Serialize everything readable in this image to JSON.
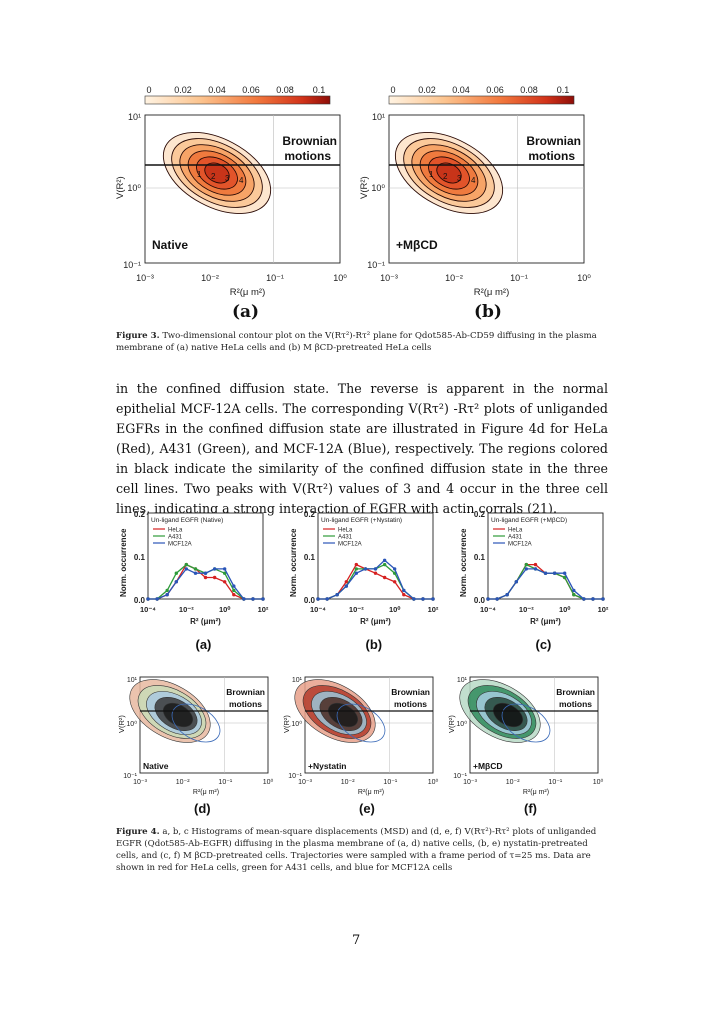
{
  "figure3": {
    "colorbar_ticks": [
      "0",
      "0.02",
      "0.04",
      "0.06",
      "0.08",
      "0.1"
    ],
    "y_ticks": [
      "10¹",
      "10⁰",
      "10⁻¹"
    ],
    "x_ticks": [
      "10⁻³",
      "10⁻²",
      "10⁻¹",
      "10⁰"
    ],
    "ylabel": "V(R²)",
    "xlabel": "R²(μ m²)",
    "brownian_line1": "Brownian",
    "brownian_line2": "motions",
    "panel_a_condition": "Native",
    "panel_b_condition": "+MβCD",
    "panel_a_label": "(a)",
    "panel_b_label": "(b)",
    "contour_labels": [
      "1",
      "2",
      "3",
      "4"
    ],
    "caption_head": "Figure 3.",
    "caption_text": "Two-dimensional contour plot on the V(Rτ²)-Rτ² plane for Qdot585-Ab-CD59 diffusing in the plasma membrane of (a) native HeLa cells and (b) M βCD-pretreated HeLa cells"
  },
  "paragraph": "in the confined diffusion state. The reverse is apparent in the normal epithelial MCF-12A cells. The corresponding V(Rτ²) -Rτ² plots of unliganded EGFRs in the confined diffusion state are illustrated in Figure 4d for HeLa (Red), A431 (Green), and MCF-12A (Blue), respectively. The regions colored in black indicate the similarity of the confined diffusion state in the three cell lines. Two peaks with V(Rτ²) values of 3 and 4 occur in the three cell lines, indicating a strong interaction of EGFR with actin corrals (21).",
  "figure4": {
    "hist_ylabel": "Norm. occurrence",
    "hist_xlabel": "R² (μm²)",
    "hist_y_ticks": [
      "0.2",
      "0.1",
      "0.0"
    ],
    "hist_x_ticks": [
      "10⁻⁴",
      "10⁻²",
      "10⁰",
      "10²"
    ],
    "hist_titles": [
      "Un-ligand EGFR (Native)",
      "Un-ligand EGFR (+Nystatin)",
      "Un-ligand EGFR (+MβCD)"
    ],
    "legend": [
      "HeLa",
      "A431",
      "MCF12A"
    ],
    "series_colors": {
      "HeLa": "#d62020",
      "A431": "#2e9b3a",
      "MCF12A": "#2a55b8"
    },
    "hist_labels": [
      "(a)",
      "(b)",
      "(c)"
    ],
    "contour_labels": [
      "(d)",
      "(e)",
      "(f)"
    ],
    "contour_conditions": [
      "Native",
      "+Nystatin",
      "+MβCD"
    ],
    "contour_ylabel": "V(R²)",
    "contour_xlabel": "R²(μ m²)",
    "contour_x_ticks": [
      "10⁻³",
      "10⁻²",
      "10⁻¹",
      "10⁰"
    ],
    "contour_y_ticks": [
      "10¹",
      "10⁰",
      "10⁻¹"
    ],
    "brownian_line1": "Brownian",
    "brownian_line2": "motions",
    "caption_head": "Figure 4.",
    "caption_text": "a, b, c Histograms of mean-square displacements (MSD) and (d, e, f) V(Rτ²)-Rτ² plots of unliganded EGFR (Qdot585-Ab-EGFR) diffusing in the plasma membrane of (a, d) native cells, (b, e) nystatin-pretreated cells, and (c, f) M βCD-pretreated cells. Trajectories were sampled with a frame period of τ=25 ms. Data are shown in red for HeLa cells, green for A431 cells, and blue for MCF12A cells"
  },
  "chart_data": [
    {
      "type": "line",
      "title": "Un-ligand EGFR (Native)",
      "xlabel": "R² (μm²)",
      "ylabel": "Norm. occurrence",
      "xscale": "log",
      "xlim": [
        0.0001,
        100
      ],
      "ylim": [
        0,
        0.2
      ],
      "x": [
        0.0001,
        0.0003,
        0.001,
        0.003,
        0.01,
        0.03,
        0.1,
        0.3,
        1,
        3,
        10,
        30,
        100
      ],
      "series": [
        {
          "name": "HeLa",
          "values": [
            0.0,
            0.0,
            0.01,
            0.04,
            0.08,
            0.07,
            0.05,
            0.05,
            0.04,
            0.01,
            0.0,
            0.0,
            0.0
          ]
        },
        {
          "name": "A431",
          "values": [
            0.0,
            0.0,
            0.02,
            0.06,
            0.08,
            0.07,
            0.06,
            0.07,
            0.06,
            0.02,
            0.0,
            0.0,
            0.0
          ]
        },
        {
          "name": "MCF12A",
          "values": [
            0.0,
            0.0,
            0.01,
            0.04,
            0.07,
            0.06,
            0.06,
            0.07,
            0.07,
            0.03,
            0.0,
            0.0,
            0.0
          ]
        }
      ]
    },
    {
      "type": "line",
      "title": "Un-ligand EGFR (+Nystatin)",
      "xlabel": "R² (μm²)",
      "ylabel": "Norm. occurrence",
      "xscale": "log",
      "xlim": [
        0.0001,
        100
      ],
      "ylim": [
        0,
        0.2
      ],
      "x": [
        0.0001,
        0.0003,
        0.001,
        0.003,
        0.01,
        0.03,
        0.1,
        0.3,
        1,
        3,
        10,
        30,
        100
      ],
      "series": [
        {
          "name": "HeLa",
          "values": [
            0.0,
            0.0,
            0.01,
            0.04,
            0.08,
            0.07,
            0.06,
            0.05,
            0.04,
            0.01,
            0.0,
            0.0,
            0.0
          ]
        },
        {
          "name": "A431",
          "values": [
            0.0,
            0.0,
            0.01,
            0.03,
            0.07,
            0.07,
            0.07,
            0.08,
            0.06,
            0.02,
            0.0,
            0.0,
            0.0
          ]
        },
        {
          "name": "MCF12A",
          "values": [
            0.0,
            0.0,
            0.01,
            0.03,
            0.06,
            0.07,
            0.07,
            0.09,
            0.07,
            0.02,
            0.0,
            0.0,
            0.0
          ]
        }
      ]
    },
    {
      "type": "line",
      "title": "Un-ligand EGFR (+MβCD)",
      "xlabel": "R² (μm²)",
      "ylabel": "Norm. occurrence",
      "xscale": "log",
      "xlim": [
        0.0001,
        100
      ],
      "ylim": [
        0,
        0.2
      ],
      "x": [
        0.0001,
        0.0003,
        0.001,
        0.003,
        0.01,
        0.03,
        0.1,
        0.3,
        1,
        3,
        10,
        30,
        100
      ],
      "series": [
        {
          "name": "HeLa",
          "values": [
            0.0,
            0.0,
            0.01,
            0.04,
            0.08,
            0.08,
            0.06,
            0.06,
            0.05,
            0.01,
            0.0,
            0.0,
            0.0
          ]
        },
        {
          "name": "A431",
          "values": [
            0.0,
            0.0,
            0.01,
            0.04,
            0.08,
            0.07,
            0.06,
            0.06,
            0.05,
            0.01,
            0.0,
            0.0,
            0.0
          ]
        },
        {
          "name": "MCF12A",
          "values": [
            0.0,
            0.0,
            0.01,
            0.04,
            0.07,
            0.07,
            0.06,
            0.06,
            0.06,
            0.02,
            0.0,
            0.0,
            0.0
          ]
        }
      ]
    }
  ],
  "page_number": "7"
}
